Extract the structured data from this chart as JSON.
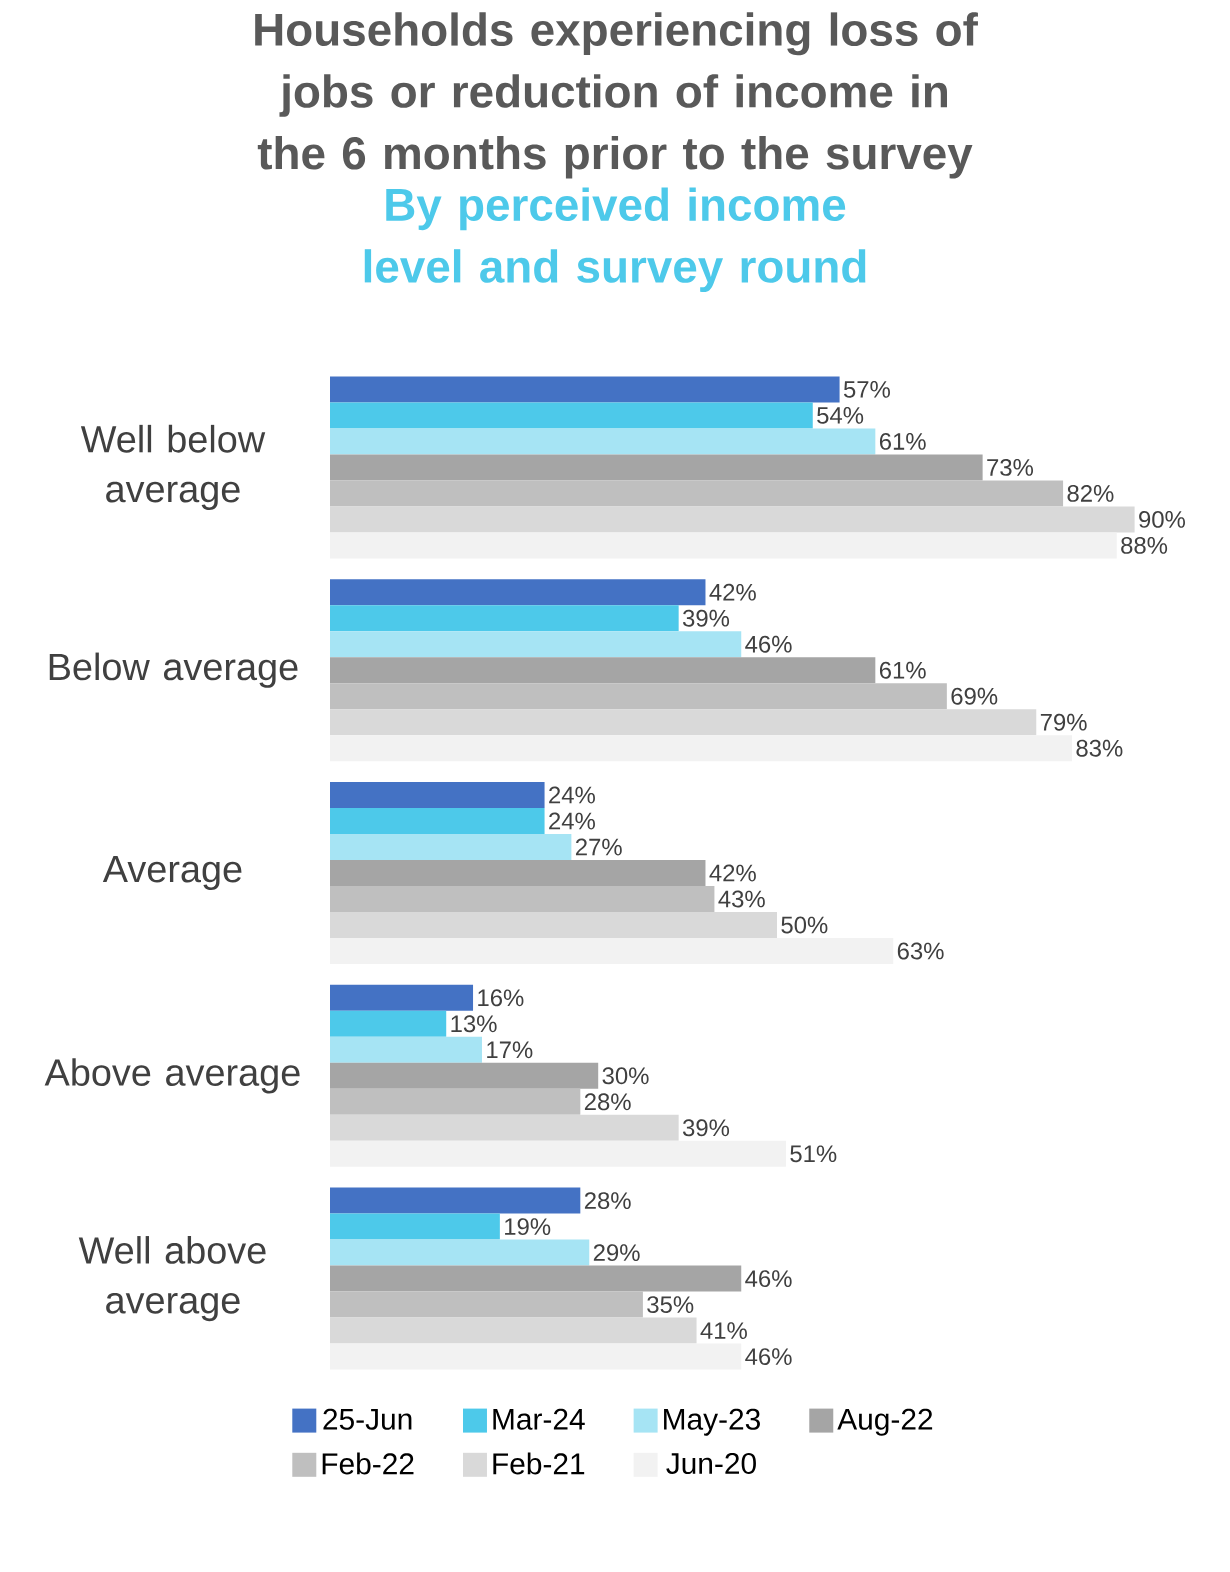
{
  "chart_data": {
    "type": "bar",
    "orientation": "horizontal",
    "title": "Households experiencing loss of jobs or reduction of income in the 6 months prior to the survey",
    "subtitle": "By perceived income level and survey round",
    "categories": [
      "Well below average",
      "Below average",
      "Average",
      "Above average",
      "Well above average"
    ],
    "legend": "bottom",
    "series": [
      {
        "name": "25-Jun",
        "color": "#4472c4",
        "values": [
          57,
          42,
          24,
          16,
          28
        ],
        "value_labels": [
          "57%",
          "42%",
          "24%",
          "16%",
          "28%"
        ]
      },
      {
        "name": "Mar-24",
        "color": "#4dc9ea",
        "values": [
          54,
          39,
          24,
          13,
          19
        ],
        "value_labels": [
          "54%",
          "39%",
          "24%",
          "13%",
          "19%"
        ]
      },
      {
        "name": "May-23",
        "color": "#a6e4f4",
        "values": [
          61,
          46,
          27,
          17,
          29
        ],
        "value_labels": [
          "61%",
          "46%",
          "27%",
          "17%",
          "29%"
        ]
      },
      {
        "name": "Aug-22",
        "color": "#a5a5a5",
        "values": [
          73,
          61,
          42,
          30,
          46
        ],
        "value_labels": [
          "73%",
          "61%",
          "42%",
          "30%",
          "46%"
        ]
      },
      {
        "name": "Feb-22",
        "color": "#bfbfbf",
        "values": [
          82,
          69,
          43,
          28,
          35
        ],
        "value_labels": [
          "82%",
          "69%",
          "43%",
          "28%",
          "35%"
        ]
      },
      {
        "name": "Feb-21",
        "color": "#d9d9d9",
        "values": [
          90,
          79,
          50,
          39,
          41
        ],
        "value_labels": [
          "90%",
          "79%",
          "50%",
          "39%",
          "41%"
        ]
      },
      {
        "name": "Jun-20",
        "color": "#f2f2f2",
        "values": [
          88,
          83,
          63,
          51,
          46
        ],
        "value_labels": [
          "88%",
          "83%",
          "63%",
          "51%",
          "46%"
        ]
      }
    ]
  }
}
